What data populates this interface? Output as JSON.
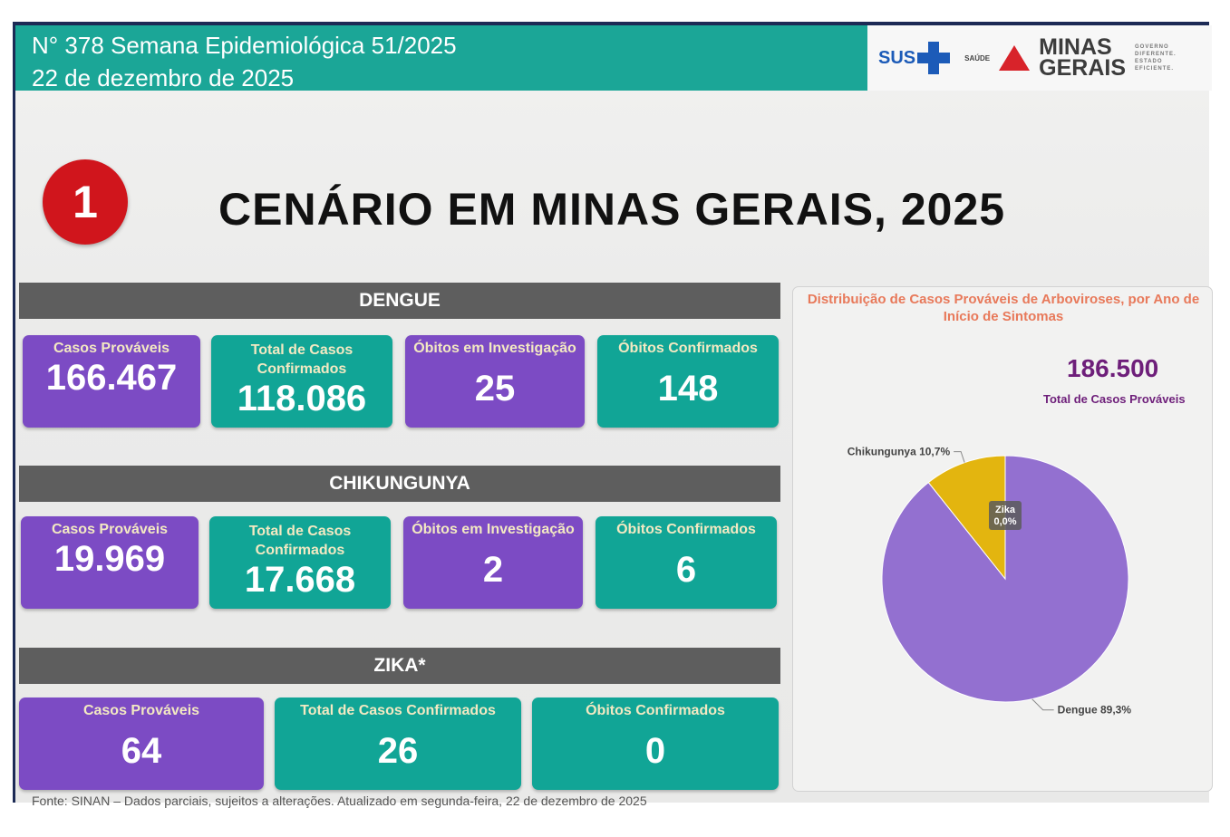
{
  "header": {
    "line1": "N° 378 Semana Epidemiológica 51/2025",
    "line2": "22 de dezembro de 2025"
  },
  "logos": {
    "sus": "SUS",
    "saude": "SAÚDE",
    "mg_line1": "MINAS",
    "mg_line2": "GERAIS",
    "mg_sub": [
      "GOVERNO",
      "DIFERENTE.",
      "ESTADO",
      "EFICIENTE."
    ]
  },
  "badge_number": "1",
  "title": "CENÁRIO EM MINAS GERAIS, 2025",
  "dengue": {
    "header": "DENGUE",
    "cards": [
      {
        "label": "Casos Prováveis",
        "value": "166.467"
      },
      {
        "label": "Total de Casos Confirmados",
        "value": "118.086"
      },
      {
        "label": "Óbitos em Investigação",
        "value": "25"
      },
      {
        "label": "Óbitos Confirmados",
        "value": "148"
      }
    ]
  },
  "chikungunya": {
    "header": "CHIKUNGUNYA",
    "cards": [
      {
        "label": "Casos Prováveis",
        "value": "19.969"
      },
      {
        "label": "Total de Casos Confirmados",
        "value": "17.668"
      },
      {
        "label": "Óbitos em Investigação",
        "value": "2"
      },
      {
        "label": "Óbitos Confirmados",
        "value": "6"
      }
    ]
  },
  "zika": {
    "header": "ZIKA*",
    "cards": [
      {
        "label": "Casos Prováveis",
        "value": "64"
      },
      {
        "label": "Total de Casos Confirmados",
        "value": "26"
      },
      {
        "label": "Óbitos Confirmados",
        "value": "0"
      }
    ]
  },
  "footnote": "Fonte: SINAN – Dados parciais, sujeitos a alterações. Atualizado em segunda-feira, 22 de dezembro de 2025",
  "colors": {
    "teal": "#11a596",
    "purple": "#7c4bc4",
    "dengue_slice": "#9370d0",
    "chik_slice": "#e3b50f",
    "zika_slice": "#5a5a5a",
    "badge": "#d0151c"
  },
  "chart_data": {
    "type": "pie",
    "title": "Distribuição de Casos Prováveis de Arboviroses, por Ano de Início de Sintomas",
    "total_value": "186.500",
    "total_label": "Total de Casos Prováveis",
    "slices": [
      {
        "label": "Dengue",
        "pct_label": "89,3%",
        "value": 89.3,
        "color": "#9370d0"
      },
      {
        "label": "Chikungunya",
        "pct_label": "10,7%",
        "value": 10.7,
        "color": "#e3b50f"
      },
      {
        "label": "Zika",
        "pct_label": "0,0%",
        "value": 0.0,
        "color": "#5a5a5a"
      }
    ]
  }
}
